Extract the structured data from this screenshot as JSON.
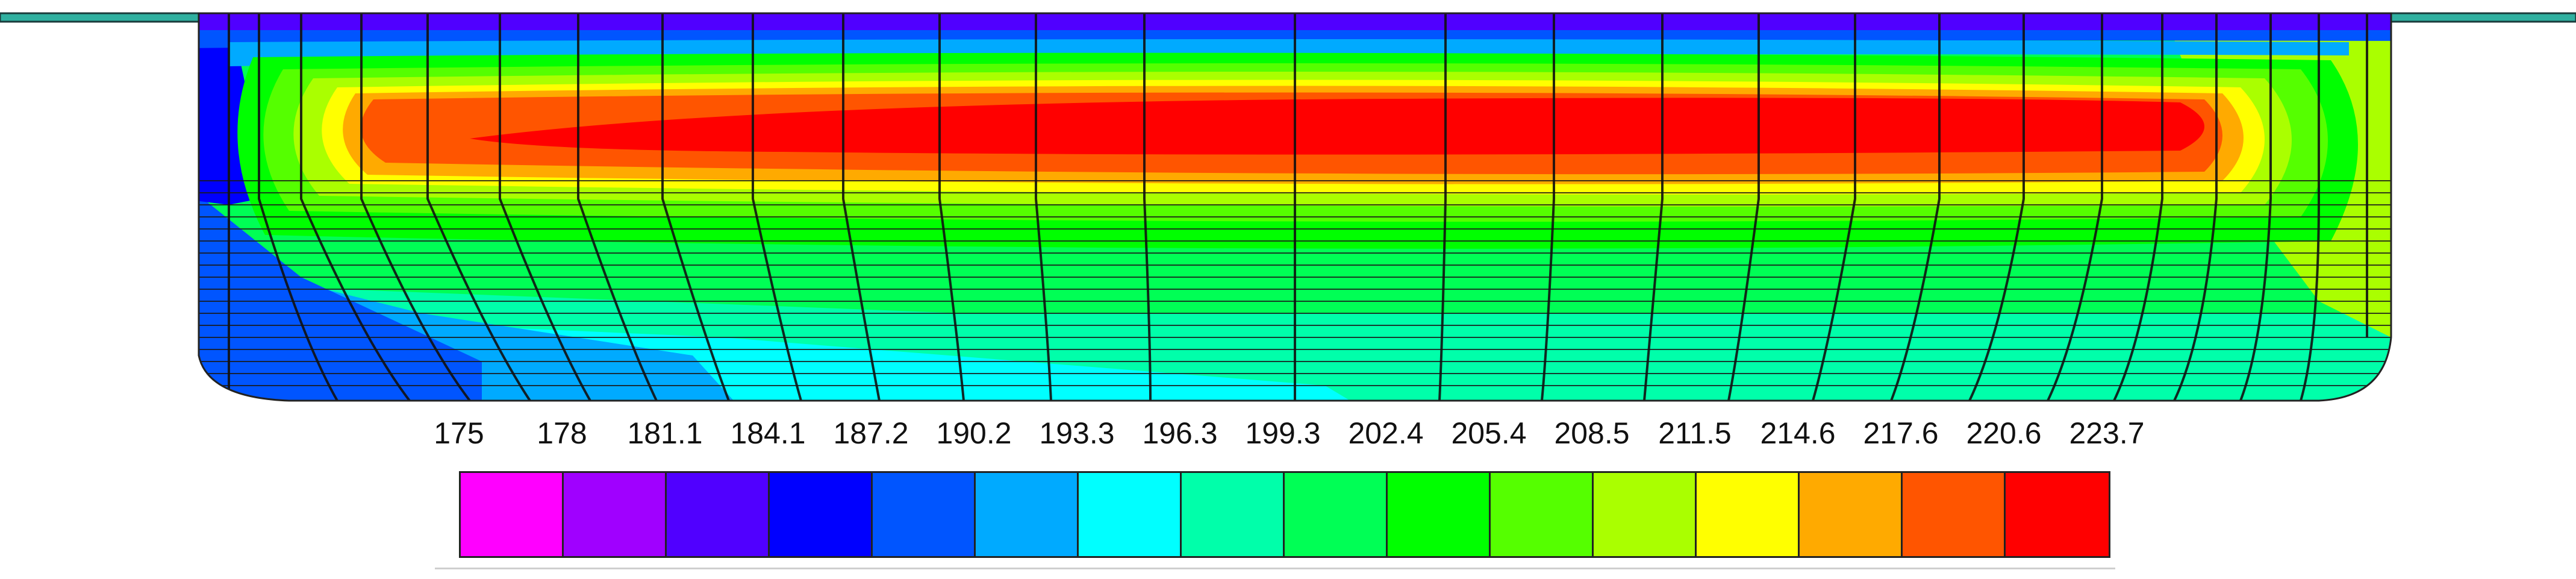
{
  "legend": {
    "labels": [
      "175",
      "178",
      "181.1",
      "184.1",
      "187.2",
      "190.2",
      "193.3",
      "196.3",
      "199.3",
      "202.4",
      "205.4",
      "208.5",
      "211.5",
      "214.6",
      "217.6",
      "220.6",
      "223.7"
    ],
    "colors": [
      "#ff00ff",
      "#a000ff",
      "#5000ff",
      "#0000ff",
      "#0055ff",
      "#00aaff",
      "#00ffff",
      "#00ffaa",
      "#00ff55",
      "#00ff00",
      "#55ff00",
      "#aaff00",
      "#ffff00",
      "#ffaa00",
      "#ff5500",
      "#ff0000"
    ]
  }
}
